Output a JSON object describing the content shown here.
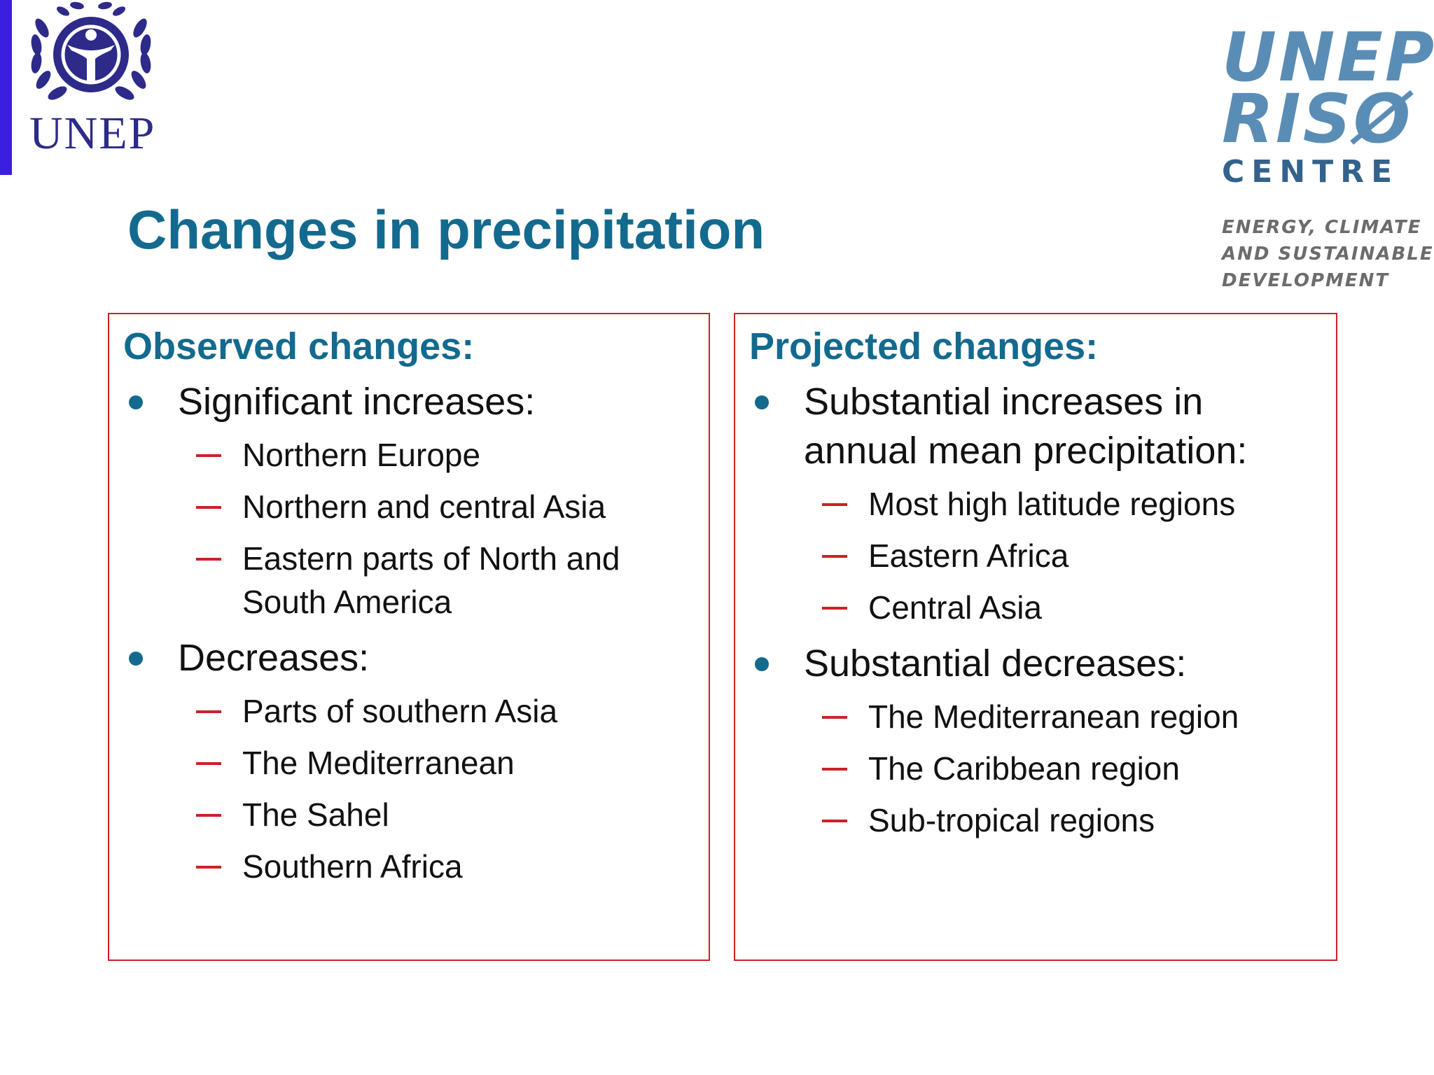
{
  "slide": {
    "title": "Changes in precipitation",
    "accent_color": "#136a8e",
    "border_color": "#cc2128"
  },
  "logos": {
    "unep": {
      "text": "UNEP",
      "icon": "un-wreath-icon"
    },
    "riso": {
      "line1": "UNEP",
      "line2": "RISØ",
      "line3": "CENTRE",
      "tagline": [
        "ENERGY, CLIMATE",
        "AND SUSTAINABLE",
        "DEVELOPMENT"
      ]
    }
  },
  "observed": {
    "heading": "Observed changes:",
    "groups": [
      {
        "label": "Significant increases:",
        "items": [
          "Northern Europe",
          "Northern and central Asia",
          "Eastern parts of North and South America"
        ]
      },
      {
        "label": "Decreases:",
        "items": [
          "Parts of southern Asia",
          "The Mediterranean",
          "The Sahel",
          "Southern Africa"
        ]
      }
    ]
  },
  "projected": {
    "heading": "Projected changes:",
    "groups": [
      {
        "label": "Substantial increases in annual mean precipitation:",
        "items": [
          "Most high latitude regions",
          "Eastern Africa",
          "Central Asia"
        ]
      },
      {
        "label": "Substantial decreases:",
        "items": [
          "The Mediterranean region",
          "The Caribbean region",
          "Sub-tropical regions"
        ]
      }
    ]
  }
}
